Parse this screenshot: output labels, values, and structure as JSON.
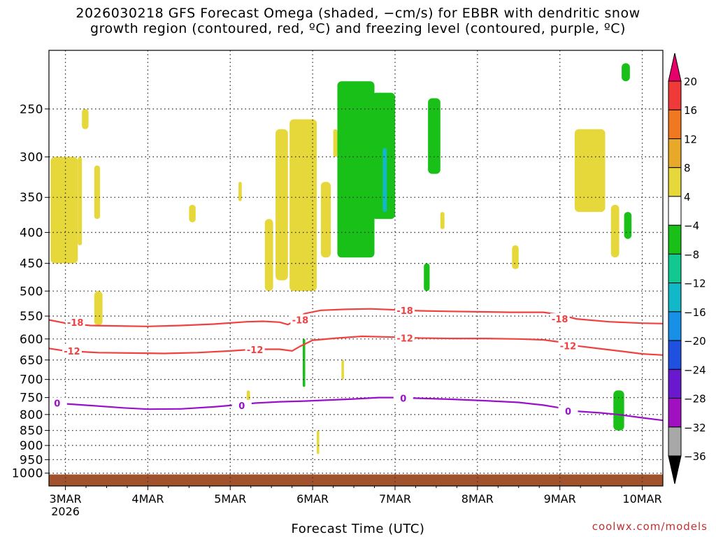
{
  "title": {
    "line1": "2026030218 GFS Forecast Omega (shaded, −cm/s) for EBBR with dendritic snow",
    "line2": "growth region (contoured, red, ºC) and freezing level (contoured, purple, ºC)"
  },
  "credit": "coolwx.com/models",
  "chart_data": {
    "type": "heatmap",
    "title": "2026030218 GFS Forecast Omega (shaded, −cm/s) for EBBR with dendritic snow growth region (contoured, red, ºC) and freezing level (contoured, purple, ºC)",
    "xlabel": "Forecast Time (UTC)",
    "ylabel": "",
    "x_range_days": [
      2.8,
      10.25
    ],
    "y_axis": {
      "scale": "log",
      "inverted": true,
      "range_hPa": [
        1050,
        200
      ],
      "ticks": [
        250,
        300,
        350,
        400,
        450,
        500,
        550,
        600,
        650,
        700,
        750,
        800,
        850,
        900,
        950,
        1000
      ]
    },
    "x_ticks": [
      {
        "day": 3,
        "label": "3MAR",
        "sublabel": "2026"
      },
      {
        "day": 4,
        "label": "4MAR"
      },
      {
        "day": 5,
        "label": "5MAR"
      },
      {
        "day": 6,
        "label": "6MAR"
      },
      {
        "day": 7,
        "label": "7MAR"
      },
      {
        "day": 8,
        "label": "8MAR"
      },
      {
        "day": 9,
        "label": "9MAR"
      },
      {
        "day": 10,
        "label": "10MAR"
      }
    ],
    "grid": true,
    "colorbar": {
      "labels": [
        "20",
        "16",
        "12",
        "8",
        "4",
        "−4",
        "−8",
        "−12",
        "−16",
        "−20",
        "−24",
        "−28",
        "−32",
        "−36"
      ],
      "colors": [
        "#e8006a",
        "#f03a3a",
        "#f07820",
        "#e8a828",
        "#e6d83a",
        "#ffffff",
        "#18c018",
        "#10c890",
        "#10b8c8",
        "#1890e8",
        "#2050e0",
        "#6a18d0",
        "#a010c0",
        "#a8a8a8",
        "#000000"
      ]
    },
    "omega_shading": [
      {
        "color": "#e6d83a",
        "t": [
          2.82,
          3.15
        ],
        "p": [
          300,
          450
        ]
      },
      {
        "color": "#e6d83a",
        "t": [
          3.15,
          3.2
        ],
        "p": [
          300,
          420
        ]
      },
      {
        "color": "#e6d83a",
        "t": [
          3.2,
          3.28
        ],
        "p": [
          250,
          270
        ]
      },
      {
        "color": "#e6d83a",
        "t": [
          3.35,
          3.42
        ],
        "p": [
          310,
          380
        ]
      },
      {
        "color": "#e6d83a",
        "t": [
          3.35,
          3.45
        ],
        "p": [
          500,
          570
        ]
      },
      {
        "color": "#e6d83a",
        "t": [
          4.5,
          4.58
        ],
        "p": [
          360,
          385
        ]
      },
      {
        "color": "#e6d83a",
        "t": [
          5.1,
          5.14
        ],
        "p": [
          330,
          355
        ]
      },
      {
        "color": "#e6d83a",
        "t": [
          5.42,
          5.52
        ],
        "p": [
          380,
          500
        ]
      },
      {
        "color": "#e6d83a",
        "t": [
          5.55,
          5.7
        ],
        "p": [
          270,
          480
        ]
      },
      {
        "color": "#e6d83a",
        "t": [
          5.72,
          6.05
        ],
        "p": [
          260,
          500
        ]
      },
      {
        "color": "#e6d83a",
        "t": [
          6.1,
          6.22
        ],
        "p": [
          330,
          440
        ]
      },
      {
        "color": "#e6d83a",
        "t": [
          6.25,
          6.3
        ],
        "p": [
          270,
          300
        ]
      },
      {
        "color": "#e6d83a",
        "t": [
          7.55,
          7.6
        ],
        "p": [
          370,
          395
        ]
      },
      {
        "color": "#e6d83a",
        "t": [
          8.42,
          8.5
        ],
        "p": [
          420,
          460
        ]
      },
      {
        "color": "#e6d83a",
        "t": [
          9.18,
          9.55
        ],
        "p": [
          270,
          370
        ]
      },
      {
        "color": "#e6d83a",
        "t": [
          9.62,
          9.72
        ],
        "p": [
          360,
          440
        ]
      },
      {
        "color": "#e6d83a",
        "t": [
          5.2,
          5.24
        ],
        "p": [
          730,
          780
        ]
      },
      {
        "color": "#e6d83a",
        "t": [
          6.35,
          6.38
        ],
        "p": [
          650,
          700
        ]
      },
      {
        "color": "#e6d83a",
        "t": [
          6.05,
          6.08
        ],
        "p": [
          850,
          930
        ]
      },
      {
        "color": "#18c018",
        "t": [
          6.3,
          6.75
        ],
        "p": [
          225,
          440
        ]
      },
      {
        "color": "#18c018",
        "t": [
          6.72,
          7.0
        ],
        "p": [
          235,
          380
        ]
      },
      {
        "color": "#18c018",
        "t": [
          7.4,
          7.55
        ],
        "p": [
          240,
          320
        ]
      },
      {
        "color": "#18c018",
        "t": [
          7.35,
          7.42
        ],
        "p": [
          450,
          500
        ]
      },
      {
        "color": "#18c018",
        "t": [
          9.75,
          9.85
        ],
        "p": [
          210,
          225
        ]
      },
      {
        "color": "#18c018",
        "t": [
          9.78,
          9.87
        ],
        "p": [
          370,
          410
        ]
      },
      {
        "color": "#18c018",
        "t": [
          9.65,
          9.78
        ],
        "p": [
          730,
          850
        ]
      },
      {
        "color": "#18c018",
        "t": [
          5.88,
          5.91
        ],
        "p": [
          600,
          720
        ]
      },
      {
        "color": "#10b8c8",
        "t": [
          6.85,
          6.9
        ],
        "p": [
          290,
          370
        ]
      }
    ],
    "terrain_band": {
      "color": "#a0522d",
      "p": [
        1005,
        1050
      ]
    },
    "contours": [
      {
        "label": "-18",
        "color": "#f04040",
        "points": [
          [
            2.8,
            558
          ],
          [
            3.0,
            565
          ],
          [
            3.3,
            570
          ],
          [
            3.6,
            571
          ],
          [
            4.0,
            572
          ],
          [
            4.4,
            570
          ],
          [
            4.8,
            567
          ],
          [
            5.2,
            562
          ],
          [
            5.4,
            561
          ],
          [
            5.6,
            563
          ],
          [
            5.7,
            568
          ],
          [
            5.8,
            558
          ],
          [
            5.9,
            545
          ],
          [
            6.1,
            538
          ],
          [
            6.4,
            536
          ],
          [
            6.7,
            535
          ],
          [
            7.0,
            537
          ],
          [
            7.3,
            539
          ],
          [
            7.6,
            540
          ],
          [
            8.0,
            541
          ],
          [
            8.4,
            542
          ],
          [
            8.8,
            542
          ],
          [
            9.0,
            547
          ],
          [
            9.2,
            556
          ],
          [
            9.6,
            562
          ],
          [
            10.0,
            565
          ],
          [
            10.25,
            566
          ]
        ],
        "label_positions": [
          [
            3.12,
            563
          ],
          [
            5.85,
            558
          ],
          [
            7.12,
            538
          ],
          [
            9.0,
            556
          ]
        ]
      },
      {
        "label": "-12",
        "color": "#f04040",
        "points": [
          [
            2.8,
            622
          ],
          [
            3.0,
            628
          ],
          [
            3.4,
            632
          ],
          [
            3.8,
            633
          ],
          [
            4.2,
            634
          ],
          [
            4.6,
            632
          ],
          [
            5.0,
            628
          ],
          [
            5.3,
            624
          ],
          [
            5.6,
            624
          ],
          [
            5.75,
            628
          ],
          [
            5.85,
            617
          ],
          [
            6.0,
            603
          ],
          [
            6.3,
            598
          ],
          [
            6.6,
            594
          ],
          [
            7.0,
            596
          ],
          [
            7.3,
            598
          ],
          [
            7.7,
            599
          ],
          [
            8.1,
            599
          ],
          [
            8.5,
            600
          ],
          [
            8.8,
            602
          ],
          [
            9.0,
            607
          ],
          [
            9.2,
            616
          ],
          [
            9.5,
            623
          ],
          [
            9.8,
            630
          ],
          [
            10.0,
            635
          ],
          [
            10.25,
            638
          ]
        ],
        "label_positions": [
          [
            3.08,
            628
          ],
          [
            5.3,
            625
          ],
          [
            7.12,
            598
          ],
          [
            9.1,
            616
          ]
        ]
      },
      {
        "label": "0",
        "color": "#9a10c8",
        "points": [
          [
            2.8,
            765
          ],
          [
            3.0,
            768
          ],
          [
            3.3,
            773
          ],
          [
            3.7,
            780
          ],
          [
            4.0,
            784
          ],
          [
            4.4,
            783
          ],
          [
            4.8,
            777
          ],
          [
            5.0,
            773
          ],
          [
            5.3,
            766
          ],
          [
            5.6,
            762
          ],
          [
            5.9,
            760
          ],
          [
            6.2,
            757
          ],
          [
            6.5,
            754
          ],
          [
            6.8,
            750
          ],
          [
            7.0,
            750
          ],
          [
            7.3,
            752
          ],
          [
            7.7,
            755
          ],
          [
            8.1,
            759
          ],
          [
            8.5,
            764
          ],
          [
            8.8,
            772
          ],
          [
            9.0,
            780
          ],
          [
            9.2,
            790
          ],
          [
            9.5,
            795
          ],
          [
            9.7,
            800
          ],
          [
            10.0,
            810
          ],
          [
            10.25,
            818
          ]
        ],
        "label_positions": [
          [
            2.9,
            766
          ],
          [
            5.14,
            773
          ],
          [
            7.1,
            752
          ],
          [
            9.1,
            790
          ]
        ]
      }
    ]
  }
}
